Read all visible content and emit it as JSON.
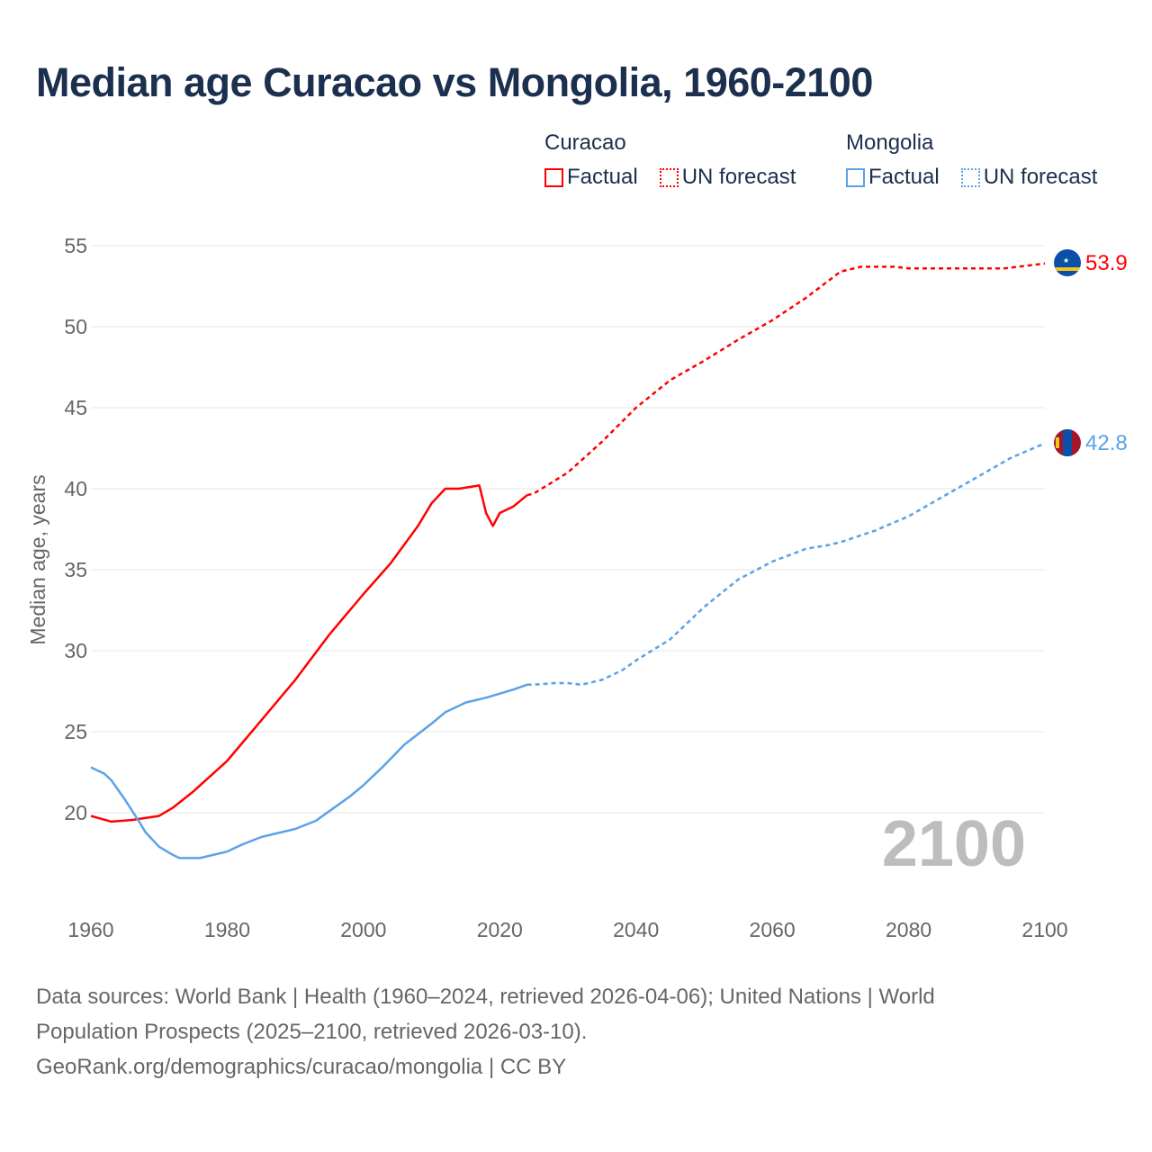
{
  "title": "Median age Curacao vs Mongolia, 1960-2100",
  "legend": {
    "groups": [
      {
        "name": "Curacao",
        "factual": "Factual",
        "forecast": "UN forecast",
        "color": "#ff0000"
      },
      {
        "name": "Mongolia",
        "factual": "Factual",
        "forecast": "UN forecast",
        "color": "#5aa2e8"
      }
    ]
  },
  "year_watermark": "2100",
  "end_labels": {
    "curacao": "53.9",
    "mongolia": "42.8"
  },
  "footer": {
    "line1": "Data sources: World Bank | Health (1960–2024, retrieved 2026-04-06); United Nations | World",
    "line2": "Population Prospects (2025–2100, retrieved 2026-03-10).",
    "line3": "GeoRank.org/demographics/curacao/mongolia | CC BY"
  },
  "chart_data": {
    "type": "line",
    "title": "Median age Curacao vs Mongolia, 1960-2100",
    "xlabel": "",
    "ylabel": "Median age, years",
    "xlim": [
      1960,
      2100
    ],
    "ylim": [
      15,
      55
    ],
    "xticks": [
      1960,
      1980,
      2000,
      2020,
      2040,
      2060,
      2080,
      2100
    ],
    "yticks": [
      20,
      25,
      30,
      35,
      40,
      45,
      50,
      55
    ],
    "grid": true,
    "legend_position": "top-right",
    "series": [
      {
        "name": "Curacao Factual",
        "color": "#ff0000",
        "dashed": false,
        "x": [
          1960,
          1963,
          1966,
          1970,
          1972,
          1975,
          1980,
          1985,
          1990,
          1995,
          2000,
          2004,
          2008,
          2010,
          2012,
          2014,
          2017,
          2018,
          2019,
          2020,
          2022,
          2024
        ],
        "y": [
          19.8,
          19.45,
          19.55,
          19.8,
          20.3,
          21.3,
          23.2,
          25.7,
          28.2,
          31.0,
          33.5,
          35.4,
          37.7,
          39.1,
          40.0,
          40.0,
          40.2,
          38.5,
          37.7,
          38.5,
          38.9,
          39.6
        ]
      },
      {
        "name": "Curacao UN forecast",
        "color": "#ff0000",
        "dashed": true,
        "x": [
          2024,
          2025,
          2030,
          2035,
          2040,
          2045,
          2050,
          2055,
          2060,
          2065,
          2070,
          2073,
          2078,
          2080,
          2094,
          2100
        ],
        "y": [
          39.6,
          39.7,
          41.0,
          42.9,
          45.0,
          46.7,
          47.9,
          49.2,
          50.4,
          51.8,
          53.4,
          53.7,
          53.7,
          53.6,
          53.6,
          53.9
        ]
      },
      {
        "name": "Mongolia Factual",
        "color": "#5aa2e8",
        "dashed": false,
        "x": [
          1960,
          1962,
          1963,
          1965,
          1967,
          1968,
          1970,
          1972,
          1973,
          1976,
          1980,
          1982,
          1985,
          1988,
          1990,
          1993,
          1995,
          1998,
          2000,
          2003,
          2006,
          2010,
          2012,
          2015,
          2018,
          2022,
          2024
        ],
        "y": [
          22.8,
          22.4,
          22.0,
          20.8,
          19.5,
          18.8,
          17.9,
          17.4,
          17.2,
          17.2,
          17.6,
          18.0,
          18.5,
          18.8,
          19.0,
          19.5,
          20.1,
          21.0,
          21.7,
          22.9,
          24.2,
          25.5,
          26.2,
          26.8,
          27.1,
          27.6,
          27.9
        ]
      },
      {
        "name": "Mongolia UN forecast",
        "color": "#5aa2e8",
        "dashed": true,
        "x": [
          2024,
          2025,
          2028,
          2030,
          2032,
          2035,
          2038,
          2040,
          2045,
          2050,
          2055,
          2060,
          2065,
          2068,
          2070,
          2075,
          2080,
          2085,
          2090,
          2095,
          2100
        ],
        "y": [
          27.9,
          27.9,
          28.0,
          28.0,
          27.9,
          28.2,
          28.8,
          29.4,
          30.7,
          32.7,
          34.4,
          35.5,
          36.3,
          36.5,
          36.7,
          37.4,
          38.3,
          39.5,
          40.7,
          41.9,
          42.8
        ]
      }
    ]
  }
}
